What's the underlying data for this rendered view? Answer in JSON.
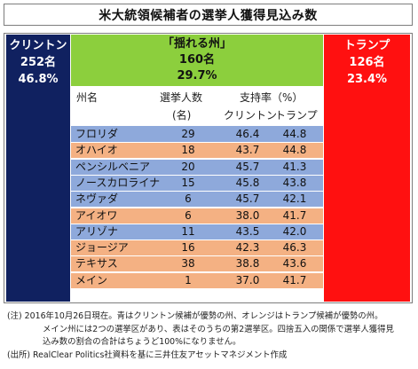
{
  "title": "米大統領候補者の選挙人獲得見込み数",
  "clinton": {
    "name": "クリントン",
    "votes": "252名",
    "share": "46.8%"
  },
  "trump": {
    "name": "トランプ",
    "votes": "126名",
    "share": "23.4%"
  },
  "swing": {
    "label": "「揺れる州」",
    "votes": "160名",
    "share": "29.7%"
  },
  "headers": {
    "state": "州名",
    "votes": "選挙人数",
    "votes_unit": "(名)",
    "support": "支持率（%）",
    "clinton": "クリントン",
    "trump": "トランプ"
  },
  "colors": {
    "clinton_panel": "#102160",
    "trump_panel": "#ff1010",
    "swing_box": "#8ccf3d",
    "blue_row": "#8ea9db",
    "orange_row": "#f4b183"
  },
  "notes": [
    "(注)  2016年10月26日現在。青はクリントン候補が優勢の州、オレンジはトランプ候補が優勢の州。",
    "メイン州には2つの選挙区があり、表はそのうちの第2選挙区。四捨五入の関係で選挙人獲得見",
    "込み数の割合の合計はちょうど100%になりません。",
    "(出所)  RealClear  Politics社資料を基に三井住友アセットマネジメント作成"
  ],
  "chart_data": {
    "type": "table",
    "title": "米大統領候補者の選挙人獲得見込み数",
    "summary": [
      {
        "candidate": "クリントン",
        "electors": 252,
        "share_pct": 46.8
      },
      {
        "candidate": "「揺れる州」",
        "electors": 160,
        "share_pct": 29.7
      },
      {
        "candidate": "トランプ",
        "electors": 126,
        "share_pct": 23.4
      }
    ],
    "columns": [
      "州名",
      "選挙人数 (名)",
      "クリントン",
      "トランプ"
    ],
    "rows": [
      {
        "state": "フロリダ",
        "electors": "29",
        "clinton": "46.4",
        "trump": "44.8",
        "lean": "blue"
      },
      {
        "state": "オハイオ",
        "electors": "18",
        "clinton": "43.7",
        "trump": "44.8",
        "lean": "orange"
      },
      {
        "state": "ペンシルベニア",
        "electors": "20",
        "clinton": "45.7",
        "trump": "41.3",
        "lean": "blue"
      },
      {
        "state": "ノースカロライナ",
        "electors": "15",
        "clinton": "45.8",
        "trump": "43.8",
        "lean": "blue"
      },
      {
        "state": "ネヴァダ",
        "electors": "6",
        "clinton": "45.7",
        "trump": "42.1",
        "lean": "blue"
      },
      {
        "state": "アイオワ",
        "electors": "6",
        "clinton": "38.0",
        "trump": "41.7",
        "lean": "orange"
      },
      {
        "state": "アリゾナ",
        "electors": "11",
        "clinton": "43.5",
        "trump": "42.0",
        "lean": "blue"
      },
      {
        "state": "ジョージア",
        "electors": "16",
        "clinton": "42.3",
        "trump": "46.3",
        "lean": "orange"
      },
      {
        "state": "テキサス",
        "electors": "38",
        "clinton": "38.8",
        "trump": "43.6",
        "lean": "orange"
      },
      {
        "state": "メイン",
        "electors": "1",
        "clinton": "37.0",
        "trump": "41.7",
        "lean": "orange"
      }
    ]
  }
}
